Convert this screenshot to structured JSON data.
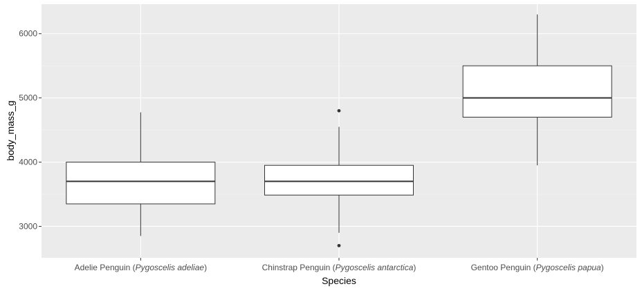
{
  "chart_data": {
    "type": "boxplot",
    "xlabel": "Species",
    "ylabel": "body_mass_g",
    "ylim": [
      2510,
      6460
    ],
    "yticks": [
      3000,
      4000,
      5000,
      6000
    ],
    "grid": true,
    "colors": {
      "panel": "#ebebeb",
      "grid_major": "#ffffff",
      "box_fill": "#ffffff",
      "box_line": "#333333",
      "outlier": "#333333"
    },
    "categories": [
      {
        "plain": "Adelie Penguin (",
        "italic": "Pygoscelis adeliae",
        "close": ")"
      },
      {
        "plain": "Chinstrap Penguin (",
        "italic": "Pygoscelis antarctica",
        "close": ")"
      },
      {
        "plain": "Gentoo Penguin (",
        "italic": "Pygoscelis papua",
        "close": ")"
      }
    ],
    "boxes": [
      {
        "min": 2850,
        "q1": 3350,
        "median": 3700,
        "q3": 4000,
        "max": 4775,
        "outliers": []
      },
      {
        "min": 2900,
        "q1": 3487,
        "median": 3700,
        "q3": 3950,
        "max": 4550,
        "outliers": [
          2700,
          4800
        ]
      },
      {
        "min": 3950,
        "q1": 4700,
        "median": 5000,
        "q3": 5500,
        "max": 6300,
        "outliers": []
      }
    ]
  }
}
